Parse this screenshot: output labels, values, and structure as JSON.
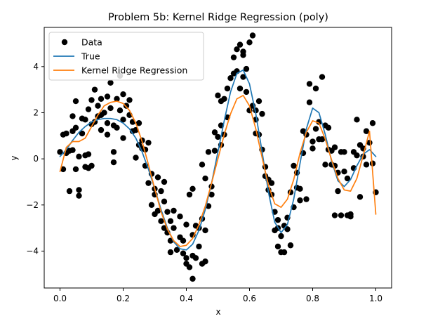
{
  "chart_data": {
    "type": "scatter+line",
    "title": "Problem 5b: Kernel Ridge Regression (poly)",
    "xlabel": "x",
    "ylabel": "y",
    "xlim": [
      -0.05,
      1.05
    ],
    "ylim": [
      -5.6,
      5.7
    ],
    "xticks": [
      0.0,
      0.2,
      0.4,
      0.6,
      0.8,
      1.0
    ],
    "xtick_labels": [
      "0.0",
      "0.2",
      "0.4",
      "0.6",
      "0.8",
      "1.0"
    ],
    "yticks": [
      -4,
      -2,
      0,
      2,
      4
    ],
    "ytick_labels": [
      "−4",
      "−2",
      "0",
      "2",
      "4"
    ],
    "grid": false,
    "legend_position": "top-left",
    "series": [
      {
        "name": "Data",
        "kind": "scatter",
        "color": "#000000",
        "points": [
          [
            0.0,
            0.3
          ],
          [
            0.01,
            -0.45
          ],
          [
            0.01,
            1.05
          ],
          [
            0.02,
            0.25
          ],
          [
            0.02,
            1.1
          ],
          [
            0.03,
            0.35
          ],
          [
            0.03,
            -1.4
          ],
          [
            0.04,
            1.85
          ],
          [
            0.04,
            1.2
          ],
          [
            0.04,
            0.38
          ],
          [
            0.05,
            2.5
          ],
          [
            0.05,
            -0.45
          ],
          [
            0.05,
            1.35
          ],
          [
            0.06,
            -1.6
          ],
          [
            0.06,
            -1.35
          ],
          [
            0.06,
            0.1
          ],
          [
            0.07,
            1.1
          ],
          [
            0.07,
            1.75
          ],
          [
            0.08,
            0.15
          ],
          [
            0.08,
            -0.35
          ],
          [
            0.08,
            1.7
          ],
          [
            0.09,
            0.2
          ],
          [
            0.09,
            2.15
          ],
          [
            0.09,
            -0.4
          ],
          [
            0.1,
            1.5
          ],
          [
            0.1,
            2.55
          ],
          [
            0.1,
            -0.3
          ],
          [
            0.11,
            3.0
          ],
          [
            0.11,
            1.6
          ],
          [
            0.12,
            2.3
          ],
          [
            0.12,
            1.85
          ],
          [
            0.13,
            1.9
          ],
          [
            0.13,
            2.6
          ],
          [
            0.13,
            1.25
          ],
          [
            0.14,
            2.0
          ],
          [
            0.15,
            1.55
          ],
          [
            0.15,
            1.05
          ],
          [
            0.15,
            2.7
          ],
          [
            0.16,
            3.3
          ],
          [
            0.16,
            2.2
          ],
          [
            0.17,
            0.3
          ],
          [
            0.17,
            -0.15
          ],
          [
            0.17,
            1.45
          ],
          [
            0.18,
            2.6
          ],
          [
            0.18,
            1.35
          ],
          [
            0.19,
            3.6
          ],
          [
            0.19,
            2.1
          ],
          [
            0.2,
            2.8
          ],
          [
            0.2,
            1.7
          ],
          [
            0.2,
            0.9
          ],
          [
            0.21,
            2.3
          ],
          [
            0.22,
            1.9
          ],
          [
            0.22,
            2.55
          ],
          [
            0.23,
            1.6
          ],
          [
            0.23,
            1.2
          ],
          [
            0.24,
            0.05
          ],
          [
            0.24,
            1.25
          ],
          [
            0.25,
            1.55
          ],
          [
            0.25,
            0.6
          ],
          [
            0.26,
            0.8
          ],
          [
            0.26,
            0.45
          ],
          [
            0.27,
            -0.3
          ],
          [
            0.27,
            0.4
          ],
          [
            0.28,
            -1.05
          ],
          [
            0.28,
            0.7
          ],
          [
            0.29,
            -2.0
          ],
          [
            0.29,
            -0.65
          ],
          [
            0.3,
            -1.3
          ],
          [
            0.3,
            -1.55
          ],
          [
            0.3,
            -2.4
          ],
          [
            0.31,
            -0.8
          ],
          [
            0.31,
            -2.25
          ],
          [
            0.32,
            -1.4
          ],
          [
            0.32,
            -2.7
          ],
          [
            0.33,
            -1.85
          ],
          [
            0.33,
            -3.0
          ],
          [
            0.33,
            -1.0
          ],
          [
            0.34,
            -3.2
          ],
          [
            0.34,
            -2.3
          ],
          [
            0.35,
            -4.05
          ],
          [
            0.35,
            -3.55
          ],
          [
            0.35,
            -2.7
          ],
          [
            0.36,
            -3.0
          ],
          [
            0.36,
            -2.25
          ],
          [
            0.37,
            -3.95
          ],
          [
            0.38,
            -3.4
          ],
          [
            0.38,
            -2.5
          ],
          [
            0.39,
            -3.55
          ],
          [
            0.39,
            -4.1
          ],
          [
            0.4,
            -2.85
          ],
          [
            0.4,
            -4.3
          ],
          [
            0.4,
            -4.55
          ],
          [
            0.41,
            -1.55
          ],
          [
            0.41,
            -4.7
          ],
          [
            0.42,
            -3.3
          ],
          [
            0.42,
            -4.2
          ],
          [
            0.42,
            -5.2
          ],
          [
            0.42,
            -1.3
          ],
          [
            0.43,
            -4.3
          ],
          [
            0.43,
            -2.9
          ],
          [
            0.44,
            -3.8
          ],
          [
            0.44,
            -3.0
          ],
          [
            0.45,
            -4.55
          ],
          [
            0.45,
            -2.6
          ],
          [
            0.45,
            -0.25
          ],
          [
            0.46,
            -4.45
          ],
          [
            0.46,
            -3.1
          ],
          [
            0.46,
            -0.85
          ],
          [
            0.47,
            0.3
          ],
          [
            0.47,
            -2.05
          ],
          [
            0.48,
            -1.2
          ],
          [
            0.48,
            -1.55
          ],
          [
            0.49,
            0.35
          ],
          [
            0.49,
            1.15
          ],
          [
            0.5,
            2.75
          ],
          [
            0.5,
            0.95
          ],
          [
            0.51,
            1.45
          ],
          [
            0.51,
            0.6
          ],
          [
            0.51,
            2.5
          ],
          [
            0.52,
            2.6
          ],
          [
            0.52,
            1.05
          ],
          [
            0.53,
            1.8
          ],
          [
            0.53,
            3.05
          ],
          [
            0.54,
            3.5
          ],
          [
            0.55,
            3.7
          ],
          [
            0.55,
            4.4
          ],
          [
            0.56,
            3.8
          ],
          [
            0.56,
            4.75
          ],
          [
            0.57,
            3.05
          ],
          [
            0.57,
            4.95
          ],
          [
            0.58,
            4.5
          ],
          [
            0.58,
            3.55
          ],
          [
            0.58,
            4.65
          ],
          [
            0.59,
            3.9
          ],
          [
            0.59,
            2.9
          ],
          [
            0.6,
            5.05
          ],
          [
            0.6,
            2.1
          ],
          [
            0.61,
            5.35
          ],
          [
            0.61,
            2.3
          ],
          [
            0.62,
            2.1
          ],
          [
            0.62,
            1.7
          ],
          [
            0.62,
            1.1
          ],
          [
            0.63,
            1.05
          ],
          [
            0.63,
            2.5
          ],
          [
            0.64,
            0.4
          ],
          [
            0.64,
            1.95
          ],
          [
            0.65,
            -0.35
          ],
          [
            0.65,
            -0.75
          ],
          [
            0.66,
            -1.35
          ],
          [
            0.66,
            -0.9
          ],
          [
            0.67,
            -1.55
          ],
          [
            0.67,
            -1.05
          ],
          [
            0.68,
            -2.3
          ],
          [
            0.68,
            -3.1
          ],
          [
            0.69,
            -3.8
          ],
          [
            0.69,
            -3.0
          ],
          [
            0.69,
            -2.65
          ],
          [
            0.7,
            -4.05
          ],
          [
            0.7,
            -3.35
          ],
          [
            0.71,
            -2.9
          ],
          [
            0.71,
            -4.05
          ],
          [
            0.72,
            -3.05
          ],
          [
            0.72,
            -2.55
          ],
          [
            0.73,
            -3.75
          ],
          [
            0.73,
            -1.45
          ],
          [
            0.74,
            -2.1
          ],
          [
            0.74,
            -0.3
          ],
          [
            0.75,
            -1.25
          ],
          [
            0.75,
            -0.6
          ],
          [
            0.76,
            -1.3
          ],
          [
            0.76,
            -1.8
          ],
          [
            0.77,
            0.25
          ],
          [
            0.77,
            1.2
          ],
          [
            0.78,
            -1.75
          ],
          [
            0.78,
            1.05
          ],
          [
            0.79,
            3.25
          ],
          [
            0.79,
            2.45
          ],
          [
            0.8,
            0.75
          ],
          [
            0.8,
            0.45
          ],
          [
            0.81,
            3.05
          ],
          [
            0.81,
            1.3
          ],
          [
            0.82,
            1.6
          ],
          [
            0.82,
            0.85
          ],
          [
            0.83,
            3.55
          ],
          [
            0.83,
            0.85
          ],
          [
            0.84,
            1.45
          ],
          [
            0.84,
            -0.25
          ],
          [
            0.85,
            0.4
          ],
          [
            0.85,
            1.35
          ],
          [
            0.86,
            -0.25
          ],
          [
            0.86,
            0.35
          ],
          [
            0.87,
            0.5
          ],
          [
            0.87,
            -0.3
          ],
          [
            0.87,
            -2.45
          ],
          [
            0.88,
            -1.4
          ],
          [
            0.88,
            -0.6
          ],
          [
            0.89,
            -2.45
          ],
          [
            0.89,
            0.3
          ],
          [
            0.9,
            -0.55
          ],
          [
            0.9,
            0.3
          ],
          [
            0.91,
            -2.45
          ],
          [
            0.91,
            -0.85
          ],
          [
            0.92,
            -2.5
          ],
          [
            0.92,
            -2.4
          ],
          [
            0.93,
            0.3
          ],
          [
            0.93,
            -0.4
          ],
          [
            0.94,
            1.7
          ],
          [
            0.94,
            0.15
          ],
          [
            0.95,
            -1.65
          ],
          [
            0.95,
            0.6
          ],
          [
            0.96,
            0.45
          ],
          [
            0.96,
            0.1
          ],
          [
            0.97,
            -0.25
          ],
          [
            0.97,
            1.2
          ],
          [
            0.98,
            0.7
          ],
          [
            0.99,
            -0.2
          ],
          [
            0.99,
            1.55
          ],
          [
            1.0,
            -1.45
          ]
        ]
      },
      {
        "name": "True",
        "kind": "line",
        "color": "#1f77b4",
        "x": [
          0.0,
          0.02,
          0.04,
          0.06,
          0.08,
          0.1,
          0.12,
          0.14,
          0.16,
          0.18,
          0.2,
          0.22,
          0.24,
          0.26,
          0.28,
          0.3,
          0.32,
          0.34,
          0.36,
          0.38,
          0.4,
          0.42,
          0.44,
          0.46,
          0.48,
          0.5,
          0.52,
          0.54,
          0.56,
          0.58,
          0.6,
          0.62,
          0.64,
          0.66,
          0.68,
          0.7,
          0.72,
          0.74,
          0.76,
          0.78,
          0.8,
          0.82,
          0.84,
          0.86,
          0.88,
          0.9,
          0.92,
          0.94,
          0.96,
          0.98,
          1.0
        ],
        "y": [
          0.1,
          0.4,
          0.8,
          1.15,
          1.4,
          1.6,
          1.7,
          1.75,
          1.75,
          1.7,
          1.55,
          1.3,
          0.9,
          0.3,
          -0.45,
          -1.3,
          -2.2,
          -3.0,
          -3.6,
          -3.9,
          -3.95,
          -3.7,
          -3.1,
          -2.2,
          -1.05,
          0.3,
          1.65,
          2.9,
          3.7,
          3.85,
          3.25,
          1.95,
          0.3,
          -1.45,
          -2.75,
          -3.2,
          -2.85,
          -1.75,
          -0.2,
          1.3,
          2.2,
          2.0,
          1.05,
          -0.1,
          -0.95,
          -1.2,
          -0.9,
          -0.3,
          0.2,
          0.4,
          0.1
        ]
      },
      {
        "name": "Kernel Ridge Regression",
        "kind": "line",
        "color": "#ff7f0e",
        "x": [
          0.0,
          0.02,
          0.04,
          0.06,
          0.08,
          0.1,
          0.12,
          0.14,
          0.16,
          0.18,
          0.2,
          0.22,
          0.24,
          0.26,
          0.28,
          0.3,
          0.32,
          0.34,
          0.36,
          0.38,
          0.4,
          0.42,
          0.44,
          0.46,
          0.48,
          0.5,
          0.52,
          0.54,
          0.56,
          0.58,
          0.6,
          0.62,
          0.64,
          0.66,
          0.68,
          0.7,
          0.72,
          0.74,
          0.76,
          0.78,
          0.8,
          0.82,
          0.84,
          0.86,
          0.88,
          0.9,
          0.92,
          0.94,
          0.96,
          0.98,
          1.0
        ],
        "y": [
          -0.55,
          0.5,
          0.75,
          0.75,
          0.9,
          1.4,
          1.9,
          2.3,
          2.45,
          2.5,
          2.4,
          2.1,
          1.55,
          0.75,
          -0.25,
          -1.3,
          -2.3,
          -3.05,
          -3.55,
          -3.8,
          -3.75,
          -3.45,
          -2.85,
          -2.05,
          -1.05,
          0.0,
          1.05,
          1.95,
          2.6,
          2.75,
          2.3,
          1.3,
          0.05,
          -1.15,
          -1.95,
          -2.1,
          -1.75,
          -0.9,
          0.25,
          1.15,
          1.65,
          1.55,
          0.85,
          -0.05,
          -0.85,
          -1.35,
          -1.4,
          -0.85,
          0.15,
          1.2,
          -2.4
        ]
      }
    ]
  }
}
